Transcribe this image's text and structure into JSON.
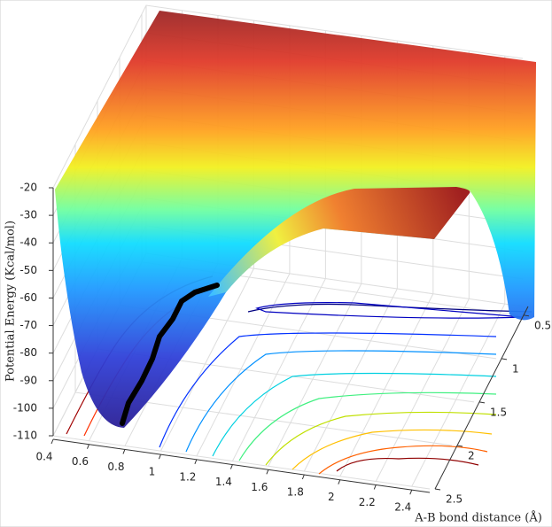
{
  "chart_data": {
    "type": "surface",
    "zlabel": "Potential Energy (Kcal/mol)",
    "ylabel": "A-B bond distance (Å)",
    "xlim": [
      0.4,
      2.5
    ],
    "xticks": [
      0.4,
      0.6,
      0.8,
      1,
      1.2,
      1.4,
      1.6,
      1.8,
      2,
      2.2,
      2.4
    ],
    "ylim": [
      0.4,
      2.5
    ],
    "yticks": [
      0.5,
      1,
      1.5,
      2,
      2.5
    ],
    "zlim": [
      -110,
      -20
    ],
    "zticks": [
      -20,
      -30,
      -40,
      -50,
      -60,
      -70,
      -80,
      -90,
      -100,
      -110
    ],
    "grid": true
  }
}
